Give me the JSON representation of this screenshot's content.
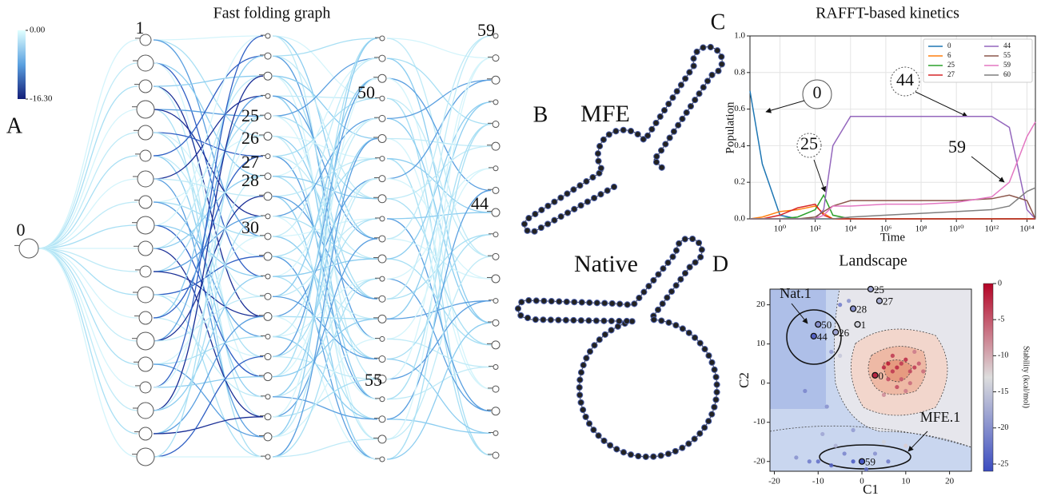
{
  "panel_labels": [
    "A",
    "B",
    "C",
    "D"
  ],
  "graph": {
    "title": "Fast folding graph",
    "colorbar_ticks": [
      {
        "value": 0,
        "label": "0.00"
      },
      {
        "value": -16.3,
        "label": "-16.30"
      }
    ],
    "node_labels": [
      "0",
      "1",
      "25",
      "26",
      "27",
      "28",
      "30",
      "50",
      "55",
      "59",
      "44"
    ]
  },
  "structures": {
    "mfe": "MFE",
    "native": "Native"
  },
  "chart_data": [
    {
      "type": "line",
      "title": "RAFFT-based kinetics",
      "x_label": "Time",
      "y_label": "Population",
      "log_x": true,
      "grid": true,
      "legend": "upper right",
      "x": [
        0.02,
        0.1,
        1,
        10,
        100,
        300,
        1000,
        10000,
        1000000,
        100000000,
        10000000000,
        1000000000000,
        10000000000000,
        100000000000000,
        300000000000000
      ],
      "xlim": [
        0.02,
        300000000000000
      ],
      "xticks": [
        {
          "value": 1,
          "label": "10⁰"
        },
        {
          "value": 100,
          "label": "10²"
        },
        {
          "value": 10000,
          "label": "10⁴"
        },
        {
          "value": 1000000,
          "label": "10⁶"
        },
        {
          "value": 100000000,
          "label": "10⁸"
        },
        {
          "value": 10000000000,
          "label": "10¹⁰"
        },
        {
          "value": 1000000000000,
          "label": "10¹²"
        },
        {
          "value": 100000000000000,
          "label": "10¹⁴"
        }
      ],
      "ylim": [
        0,
        1
      ],
      "yticks": [
        {
          "value": 0,
          "label": "0.0"
        },
        0.2,
        0.4,
        0.6,
        0.8,
        {
          "value": 1,
          "label": "1.0"
        }
      ],
      "series": [
        {
          "name": "0",
          "color": "#1f77b4",
          "values": [
            0.7,
            0.3,
            0.02,
            0,
            0,
            0,
            0,
            0,
            0,
            0,
            0,
            0,
            0,
            0,
            0
          ]
        },
        {
          "name": "6",
          "color": "#ff7f0e",
          "values": [
            0,
            0.01,
            0.04,
            0.05,
            0.07,
            0.03,
            0,
            0,
            0,
            0,
            0,
            0,
            0,
            0,
            0
          ]
        },
        {
          "name": "25",
          "color": "#2ca02c",
          "values": [
            0,
            0,
            0,
            0.01,
            0.05,
            0.13,
            0.02,
            0,
            0,
            0,
            0,
            0,
            0,
            0,
            0
          ]
        },
        {
          "name": "27",
          "color": "#d62728",
          "values": [
            0,
            0,
            0.02,
            0.06,
            0.08,
            0.02,
            0,
            0,
            0,
            0,
            0,
            0,
            0,
            0,
            0
          ]
        },
        {
          "name": "44",
          "color": "#9467bd",
          "values": [
            0,
            0,
            0,
            0,
            0,
            0.05,
            0.4,
            0.56,
            0.56,
            0.56,
            0.56,
            0.56,
            0.5,
            0.05,
            0
          ]
        },
        {
          "name": "55",
          "color": "#8c564b",
          "values": [
            0,
            0,
            0,
            0,
            0.01,
            0.04,
            0.07,
            0.1,
            0.1,
            0.1,
            0.1,
            0.11,
            0.13,
            0.1,
            0
          ]
        },
        {
          "name": "59",
          "color": "#e377c2",
          "values": [
            0,
            0,
            0,
            0,
            0,
            0.02,
            0.07,
            0.07,
            0.08,
            0.08,
            0.09,
            0.12,
            0.2,
            0.45,
            0.53
          ]
        },
        {
          "name": "60",
          "color": "#7f7f7f",
          "values": [
            0,
            0,
            0,
            0,
            0,
            0,
            0,
            0.01,
            0.02,
            0.03,
            0.04,
            0.05,
            0.07,
            0.15,
            0.17
          ]
        }
      ],
      "annotations": [
        "0",
        "25",
        "44",
        "59"
      ]
    },
    {
      "type": "scatter",
      "title": "Landscape",
      "x_label": "C1",
      "y_label": "C2",
      "xlim": [
        -21,
        25
      ],
      "ylim": [
        -22.5,
        24
      ],
      "xticks": [
        -20,
        -10,
        0,
        10,
        20
      ],
      "yticks": [
        -20,
        -10,
        0,
        10,
        20
      ],
      "colorbar": {
        "label": "Stability (kcal/mol)",
        "lim": [
          -26,
          0
        ],
        "ticks": [
          0,
          -5,
          -10,
          -15,
          -20,
          -25
        ]
      },
      "points": {
        "x": [
          2,
          4,
          -2,
          -1,
          -10,
          -6,
          -11,
          3,
          0,
          5,
          6,
          7,
          8,
          9,
          10,
          11,
          12,
          13,
          14,
          6,
          9,
          11,
          10,
          5,
          7,
          12,
          8,
          -5,
          -3,
          -7,
          -13,
          -8,
          -2,
          -9,
          -6,
          -4,
          -12,
          -7,
          -2,
          3,
          6,
          -15,
          1,
          -5,
          5,
          -10,
          10
        ],
        "y": [
          24,
          21,
          19,
          15,
          15,
          13,
          12,
          2,
          -20,
          4,
          5,
          3,
          4,
          5,
          6,
          3,
          4,
          5,
          3,
          1,
          1,
          0,
          -2,
          -3,
          7,
          8,
          -1,
          20,
          21,
          8,
          -2,
          -6,
          -12,
          -13,
          -16,
          -18,
          -20,
          -21,
          -20,
          -18,
          -20,
          -19,
          -22,
          7,
          -15,
          -20,
          -16
        ],
        "stability": [
          -18,
          -17,
          -20,
          -14,
          -20,
          -18,
          -24,
          -2,
          -25,
          -2,
          -1,
          -3,
          -2,
          -3,
          -2,
          -4,
          -3,
          -5,
          -6,
          -4,
          -5,
          -6,
          -7,
          -8,
          -3,
          -7,
          -4,
          -22,
          -20,
          -19,
          -21,
          -20,
          -19,
          -18,
          -17,
          -21,
          -22,
          -24,
          -25,
          -20,
          -22,
          -20,
          -23,
          -15,
          -14,
          -23,
          -12
        ],
        "labels": [
          "25",
          "27",
          "28",
          "1",
          "50",
          "26",
          "44",
          "0",
          "59",
          null,
          null,
          null,
          null,
          null,
          null,
          null,
          null,
          null,
          null,
          null,
          null,
          null,
          null,
          null,
          null,
          null,
          null,
          null,
          null,
          null,
          null,
          null,
          null,
          null,
          null,
          null,
          null,
          null,
          null,
          null,
          null,
          null,
          null,
          null,
          null,
          null,
          null
        ]
      },
      "annotations": [
        "Nat.1",
        "MFE.1"
      ]
    }
  ]
}
